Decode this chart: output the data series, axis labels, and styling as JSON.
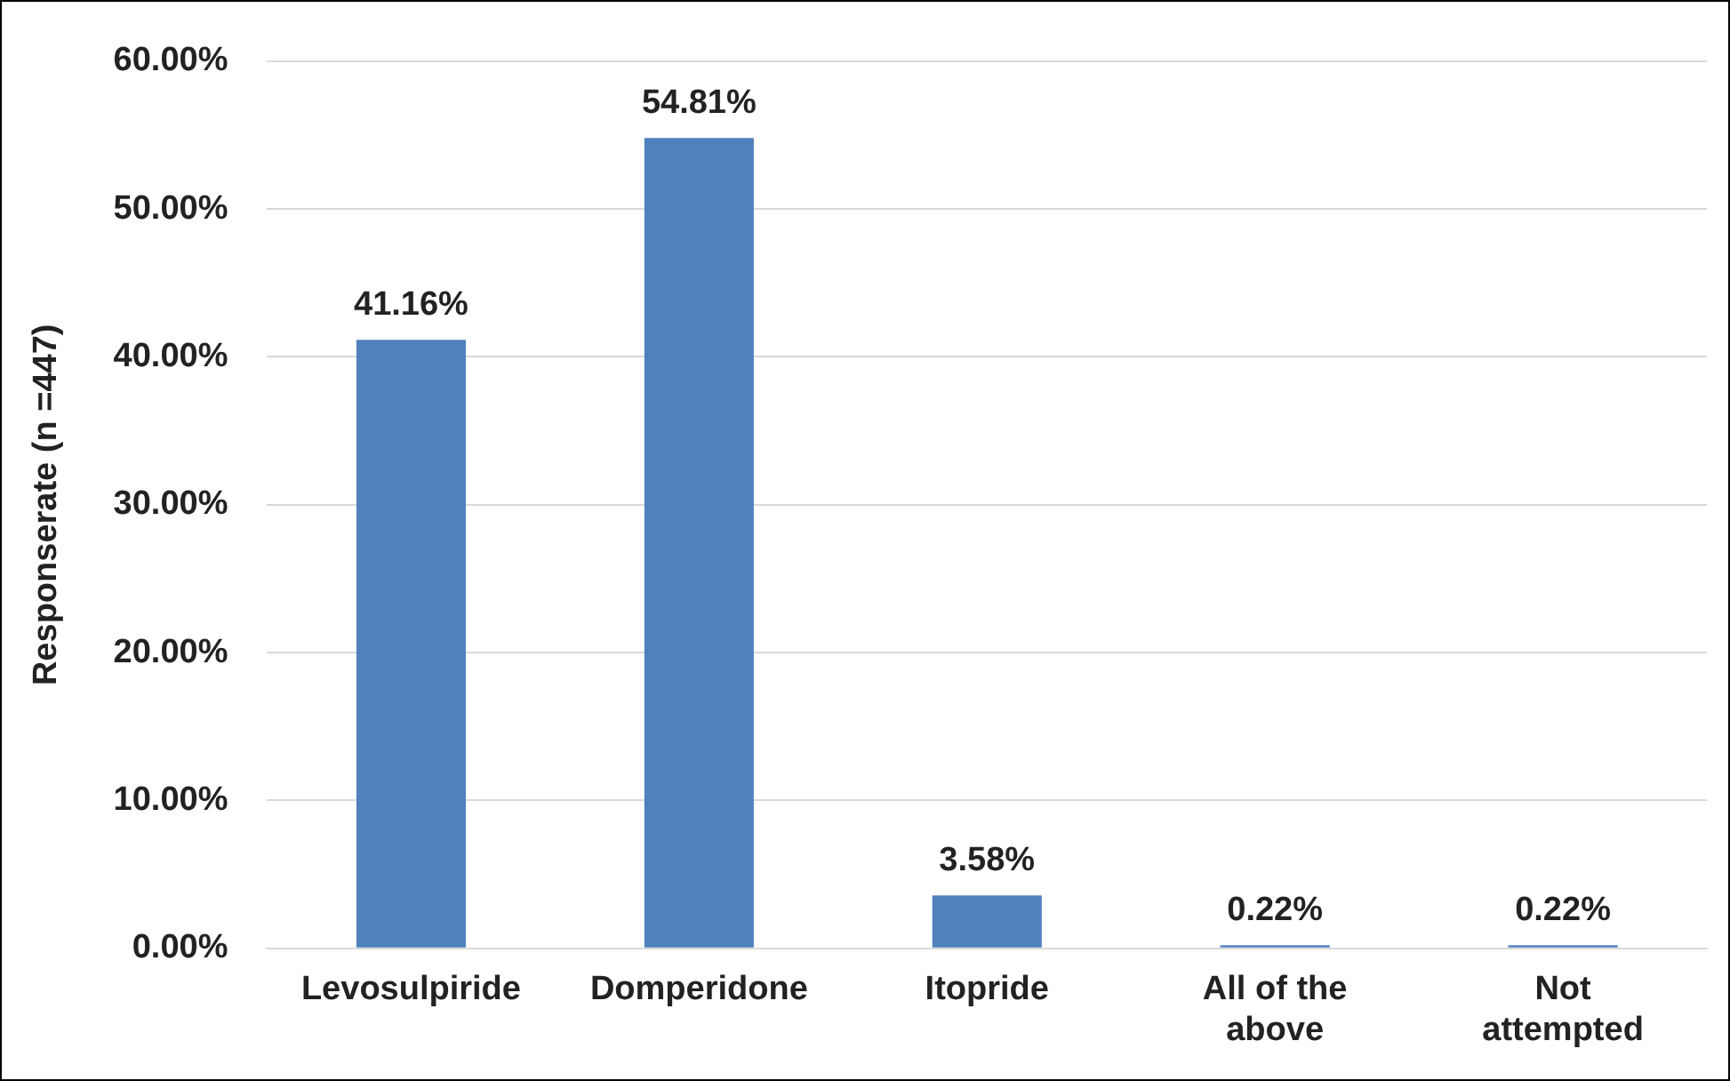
{
  "chart_data": {
    "type": "bar",
    "ylabel": "Responserate (n =447)",
    "categories": [
      "Levosulpiride",
      "Domperidone",
      "Itopride",
      "All of the above",
      "Not attempted"
    ],
    "values": [
      41.16,
      54.81,
      3.58,
      0.22,
      0.22
    ],
    "color": "#4f81bd",
    "value_labels": [
      "41.16%",
      "54.81%",
      "3.58%",
      "0.22%",
      "0.22%"
    ],
    "ylim": [
      0,
      60
    ],
    "yticks": [
      {
        "value": 0,
        "label": "0.00%"
      },
      {
        "value": 10,
        "label": "10.00%"
      },
      {
        "value": 20,
        "label": "20.00%"
      },
      {
        "value": 30,
        "label": "30.00%"
      },
      {
        "value": 40,
        "label": "40.00%"
      },
      {
        "value": 50,
        "label": "50.00%"
      },
      {
        "value": 60,
        "label": "60.00%"
      }
    ],
    "grid": "y",
    "legend": false
  }
}
